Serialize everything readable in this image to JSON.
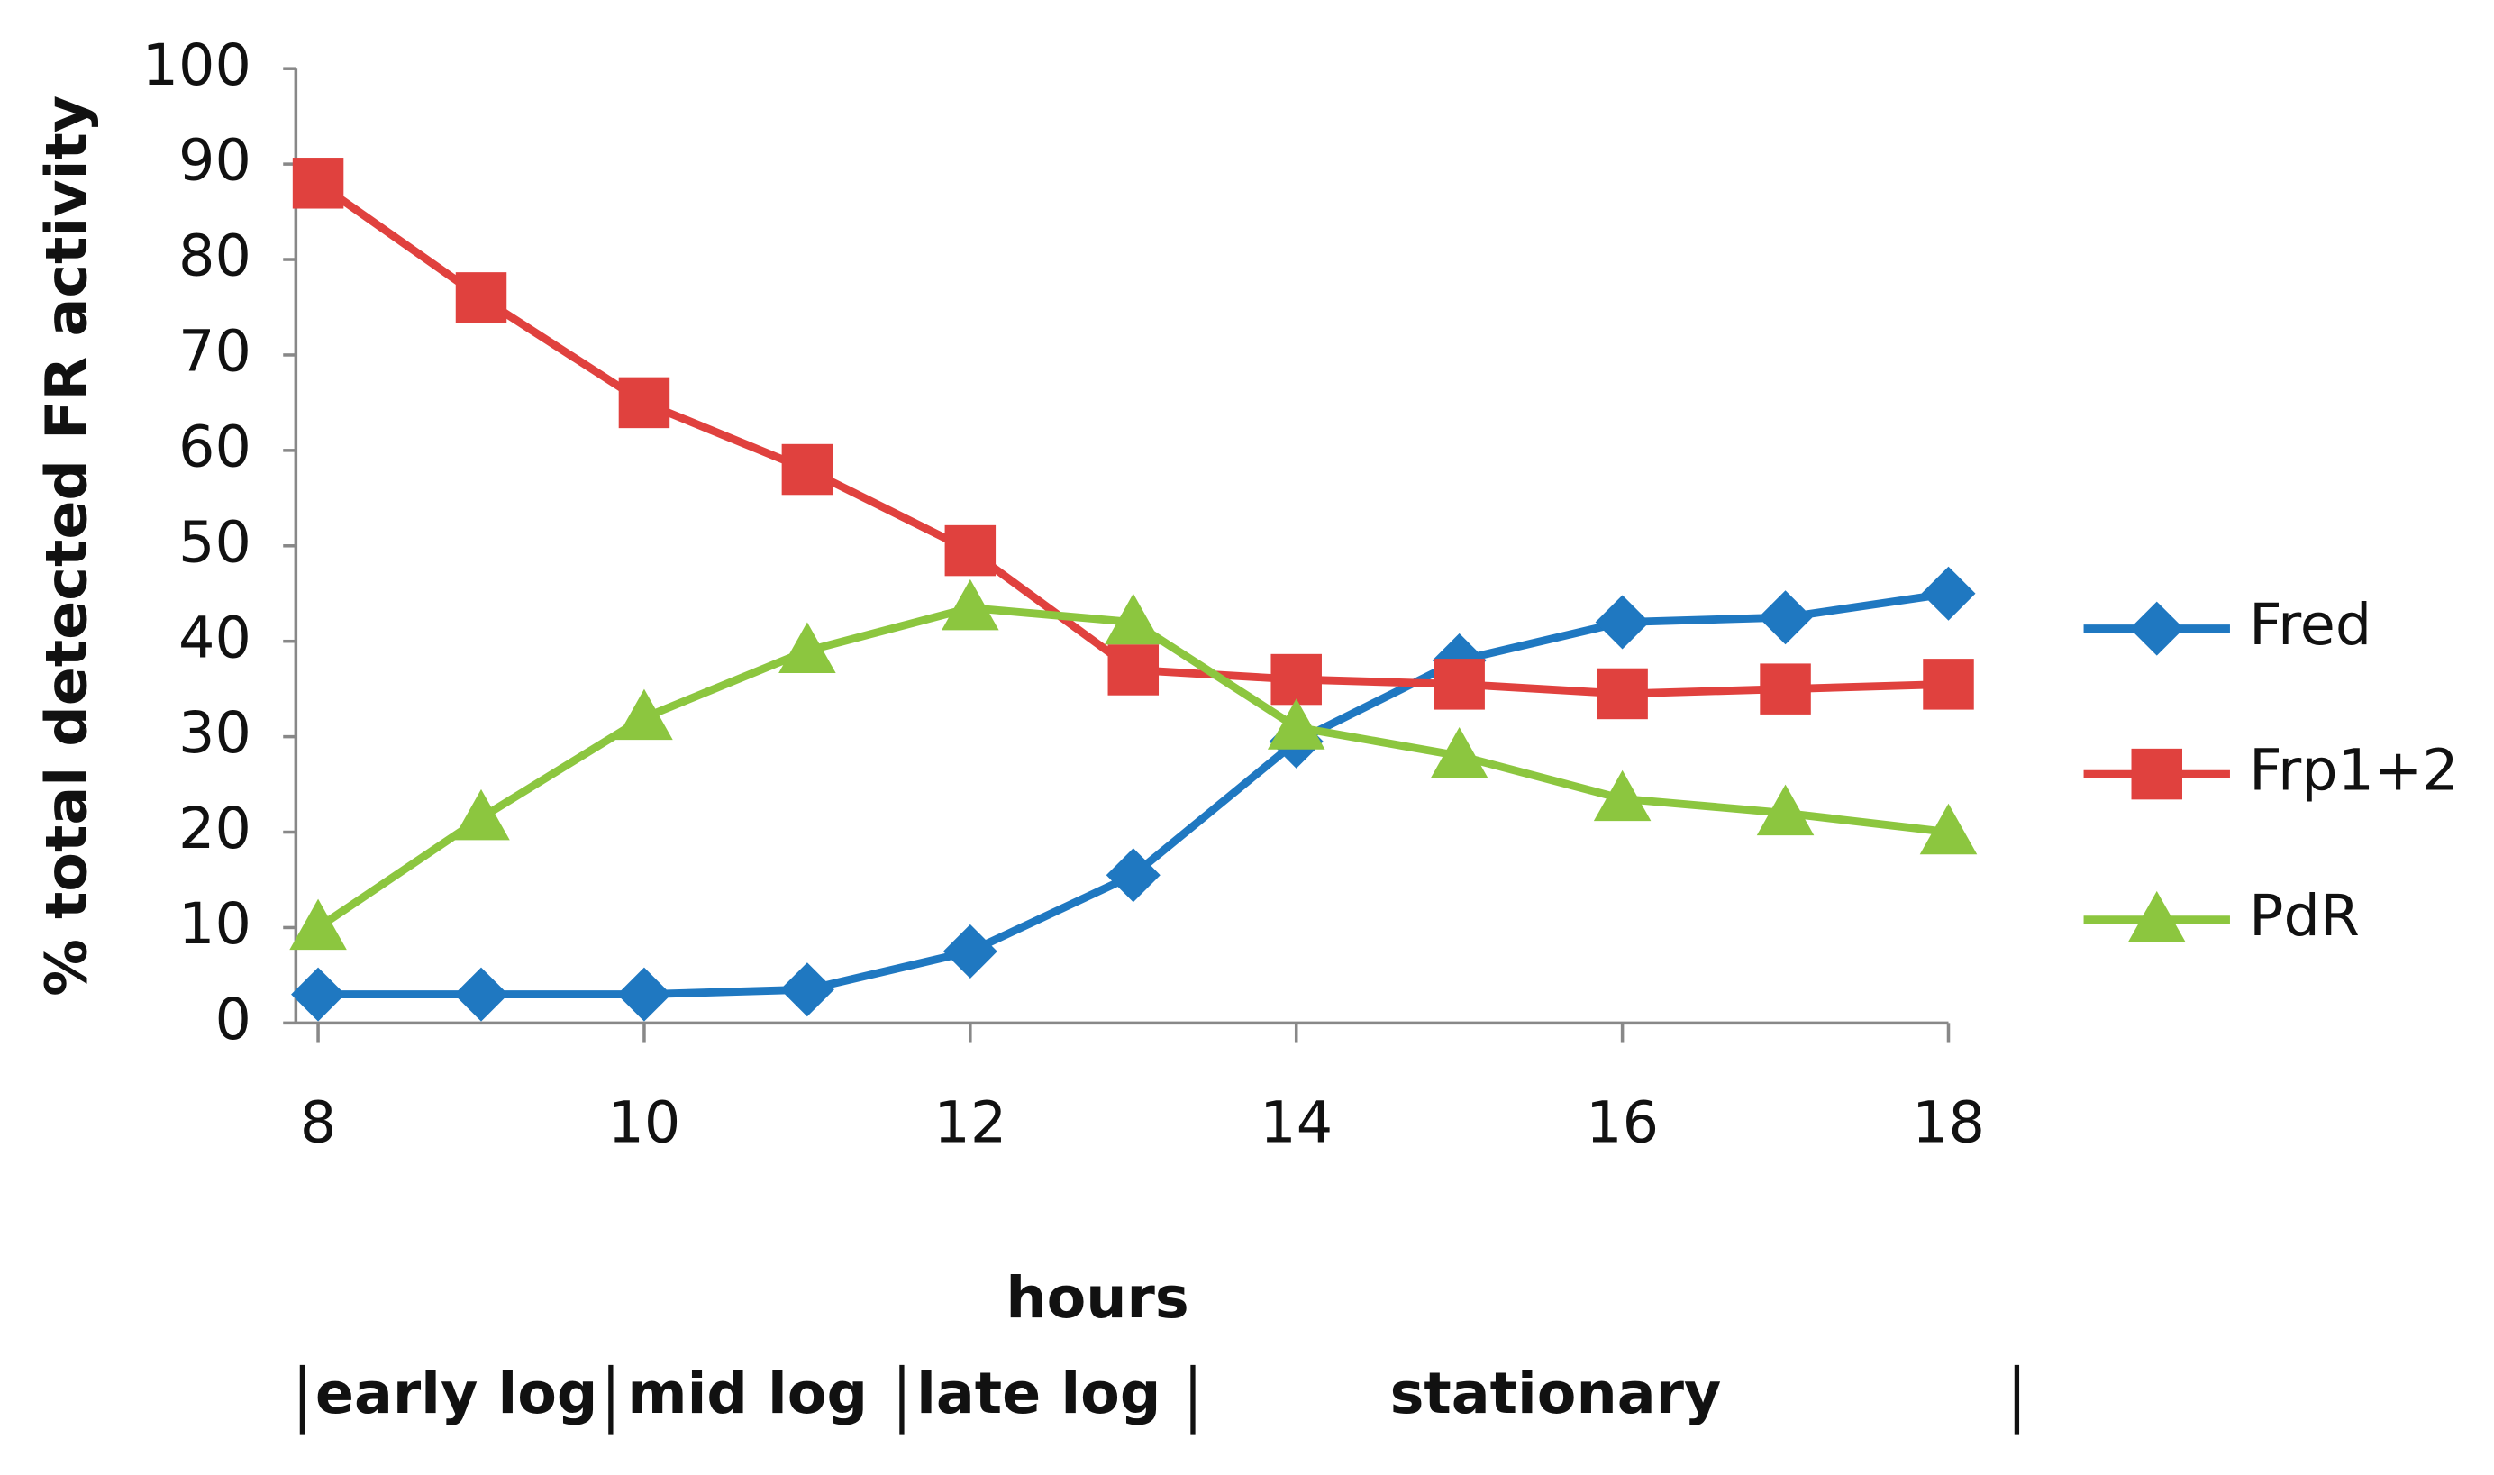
{
  "chart_data": {
    "type": "line",
    "y_label": "% total detected FR activity",
    "x_label": "hours",
    "phases": [
      "early log",
      "mid log",
      "late log",
      "stationary"
    ],
    "x": [
      8,
      9,
      10,
      11,
      12,
      13,
      14,
      15,
      16,
      17,
      18
    ],
    "xlim": [
      8,
      18
    ],
    "xticks": [
      8,
      10,
      12,
      14,
      16,
      18
    ],
    "ylim": [
      0,
      100
    ],
    "yticks": [
      0,
      10,
      20,
      30,
      40,
      50,
      60,
      70,
      80,
      90,
      100
    ],
    "legend": "right",
    "series": [
      {
        "name": "Fred",
        "color": "#1f78c1",
        "marker": "diamond",
        "values": [
          3,
          3,
          3,
          3.5,
          7.5,
          15.5,
          29.5,
          38,
          42,
          42.5,
          45
        ]
      },
      {
        "name": "Frp1+2",
        "color": "#e0413e",
        "marker": "square",
        "values": [
          88,
          76,
          65,
          58,
          49.5,
          37,
          36,
          35.5,
          34.5,
          35,
          35.5
        ]
      },
      {
        "name": "PdR",
        "color": "#8cc63f",
        "marker": "triangle",
        "values": [
          10,
          21.5,
          32,
          39,
          43.5,
          42,
          31,
          28,
          23.5,
          22,
          20
        ]
      }
    ]
  }
}
